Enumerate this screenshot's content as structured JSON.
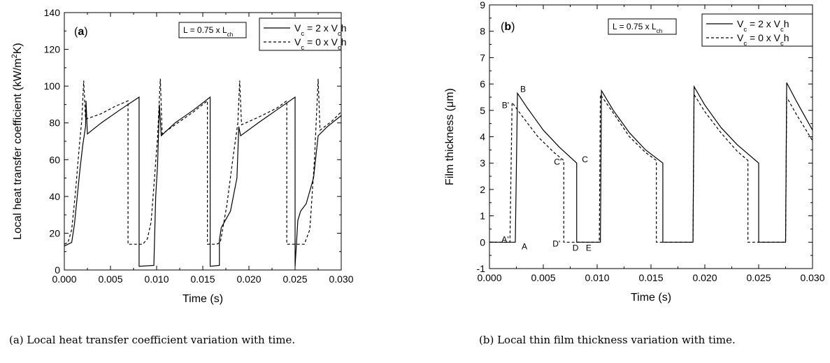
{
  "chart_data": [
    {
      "type": "line",
      "panel_label": "(a)",
      "xlabel": "Time (s)",
      "ylabel": "Local heat transfer coefficient (kW/m²K)",
      "xlim": [
        0,
        0.03
      ],
      "ylim": [
        0,
        140
      ],
      "x_ticks": [
        "0.000",
        "0.005",
        "0.010",
        "0.015",
        "0.020",
        "0.025",
        "0.030"
      ],
      "y_ticks": [
        "0",
        "20",
        "40",
        "60",
        "80",
        "100",
        "120",
        "140"
      ],
      "condition": "L = 0.75 x Lch",
      "series": [
        {
          "name": "Vc = 2 x Vch",
          "style": "solid",
          "points": [
            [
              0,
              13
            ],
            [
              0.0004,
              14
            ],
            [
              0.0008,
              15
            ],
            [
              0.0011,
              25
            ],
            [
              0.0014,
              40
            ],
            [
              0.0017,
              55
            ],
            [
              0.002,
              68
            ],
            [
              0.0023,
              78
            ],
            [
              0.00235,
              92
            ],
            [
              0.0025,
              74
            ],
            [
              0.004,
              80
            ],
            [
              0.006,
              87
            ],
            [
              0.0081,
              94
            ],
            [
              0.0081,
              2
            ],
            [
              0.0097,
              2.5
            ],
            [
              0.0099,
              40
            ],
            [
              0.0101,
              57
            ],
            [
              0.0103,
              90
            ],
            [
              0.0105,
              73
            ],
            [
              0.012,
              80
            ],
            [
              0.014,
              87
            ],
            [
              0.0158,
              94
            ],
            [
              0.0158,
              2
            ],
            [
              0.0168,
              2.5
            ],
            [
              0.0168,
              16
            ],
            [
              0.017,
              23
            ],
            [
              0.018,
              32
            ],
            [
              0.0187,
              50
            ],
            [
              0.0189,
              78
            ],
            [
              0.0191,
              73
            ],
            [
              0.021,
              80
            ],
            [
              0.023,
              87
            ],
            [
              0.025,
              94
            ],
            [
              0.025,
              2
            ],
            [
              0.0253,
              27
            ],
            [
              0.0256,
              32
            ],
            [
              0.0262,
              36
            ],
            [
              0.027,
              50
            ],
            [
              0.0275,
              73
            ],
            [
              0.0285,
              78
            ],
            [
              0.03,
              84
            ]
          ]
        },
        {
          "name": "Vc = 0 x Vch",
          "style": "dashed",
          "points": [
            [
              0,
              14
            ],
            [
              0.0004,
              15
            ],
            [
              0.0008,
              22
            ],
            [
              0.0012,
              42
            ],
            [
              0.0016,
              66
            ],
            [
              0.0019,
              82
            ],
            [
              0.0021,
              103
            ],
            [
              0.0023,
              82
            ],
            [
              0.004,
              85
            ],
            [
              0.0055,
              89
            ],
            [
              0.0069,
              92
            ],
            [
              0.0069,
              14
            ],
            [
              0.0085,
              14
            ],
            [
              0.009,
              17
            ],
            [
              0.0094,
              26
            ],
            [
              0.0098,
              52
            ],
            [
              0.0101,
              72
            ],
            [
              0.0104,
              104
            ],
            [
              0.0106,
              74
            ],
            [
              0.012,
              79
            ],
            [
              0.014,
              86
            ],
            [
              0.0155,
              92
            ],
            [
              0.0155,
              14
            ],
            [
              0.0165,
              14
            ],
            [
              0.0169,
              15
            ],
            [
              0.0176,
              35
            ],
            [
              0.0183,
              62
            ],
            [
              0.0188,
              80
            ],
            [
              0.019,
              103
            ],
            [
              0.0192,
              79
            ],
            [
              0.021,
              83
            ],
            [
              0.023,
              88
            ],
            [
              0.0241,
              92
            ],
            [
              0.0241,
              14
            ],
            [
              0.026,
              14
            ],
            [
              0.0266,
              22
            ],
            [
              0.0271,
              60
            ],
            [
              0.0275,
              104
            ],
            [
              0.0277,
              76
            ],
            [
              0.029,
              81
            ],
            [
              0.03,
              86
            ]
          ]
        }
      ]
    },
    {
      "type": "line",
      "panel_label": "(b)",
      "xlabel": "Time (s)",
      "ylabel": "Film thickness (μm)",
      "xlim": [
        0,
        0.03
      ],
      "ylim": [
        -1,
        9
      ],
      "x_ticks": [
        "0.000",
        "0.005",
        "0.010",
        "0.015",
        "0.020",
        "0.025",
        "0.030"
      ],
      "y_ticks": [
        "-1",
        "0",
        "1",
        "2",
        "3",
        "4",
        "5",
        "6",
        "7",
        "8",
        "9"
      ],
      "condition": "L = 0.75 x Lch",
      "series": [
        {
          "name": "Vc = 2 x Vch",
          "style": "solid",
          "points": [
            [
              0,
              0
            ],
            [
              0.0024,
              0
            ],
            [
              0.0026,
              5.65
            ],
            [
              0.0035,
              5.1
            ],
            [
              0.005,
              4.25
            ],
            [
              0.0065,
              3.6
            ],
            [
              0.0081,
              3.0
            ],
            [
              0.0081,
              0
            ],
            [
              0.0103,
              0
            ],
            [
              0.0104,
              5.75
            ],
            [
              0.0115,
              5.0
            ],
            [
              0.013,
              4.15
            ],
            [
              0.0145,
              3.5
            ],
            [
              0.0161,
              3.0
            ],
            [
              0.0161,
              0
            ],
            [
              0.0189,
              0
            ],
            [
              0.019,
              5.9
            ],
            [
              0.02,
              5.2
            ],
            [
              0.0215,
              4.35
            ],
            [
              0.023,
              3.7
            ],
            [
              0.025,
              3.0
            ],
            [
              0.025,
              0
            ],
            [
              0.0275,
              0
            ],
            [
              0.0276,
              6.05
            ],
            [
              0.0285,
              5.35
            ],
            [
              0.03,
              4.25
            ]
          ]
        },
        {
          "name": "Vc = 0 x Vch",
          "style": "dashed",
          "points": [
            [
              0,
              0
            ],
            [
              0.0019,
              0
            ],
            [
              0.0021,
              5.3
            ],
            [
              0.003,
              4.8
            ],
            [
              0.0045,
              4.0
            ],
            [
              0.006,
              3.4
            ],
            [
              0.0069,
              3.1
            ],
            [
              0.0069,
              0
            ],
            [
              0.0102,
              0
            ],
            [
              0.0103,
              5.6
            ],
            [
              0.0115,
              4.9
            ],
            [
              0.013,
              4.0
            ],
            [
              0.0145,
              3.4
            ],
            [
              0.0155,
              3.1
            ],
            [
              0.0155,
              0
            ],
            [
              0.0189,
              0
            ],
            [
              0.019,
              5.6
            ],
            [
              0.02,
              4.95
            ],
            [
              0.0215,
              4.15
            ],
            [
              0.023,
              3.45
            ],
            [
              0.024,
              3.1
            ],
            [
              0.024,
              0
            ],
            [
              0.0275,
              0
            ],
            [
              0.0276,
              5.5
            ],
            [
              0.0285,
              4.85
            ],
            [
              0.03,
              3.85
            ]
          ]
        }
      ],
      "annotations": [
        {
          "text": "A'",
          "x": 0.0019,
          "y": 0
        },
        {
          "text": "A",
          "x": 0.0026,
          "y": 0
        },
        {
          "text": "B'",
          "x": 0.002,
          "y": 5.3
        },
        {
          "text": "B",
          "x": 0.0026,
          "y": 5.65
        },
        {
          "text": "C'",
          "x": 0.0069,
          "y": 3.1
        },
        {
          "text": "C",
          "x": 0.0082,
          "y": 3.0
        },
        {
          "text": "D'",
          "x": 0.0069,
          "y": 0
        },
        {
          "text": "D",
          "x": 0.0081,
          "y": 0
        },
        {
          "text": "E",
          "x": 0.0085,
          "y": 0
        }
      ]
    }
  ],
  "captions": {
    "a": "(a) Local heat transfer coefficient variation with time.",
    "b": "(b) Local thin film thickness variation with time."
  }
}
